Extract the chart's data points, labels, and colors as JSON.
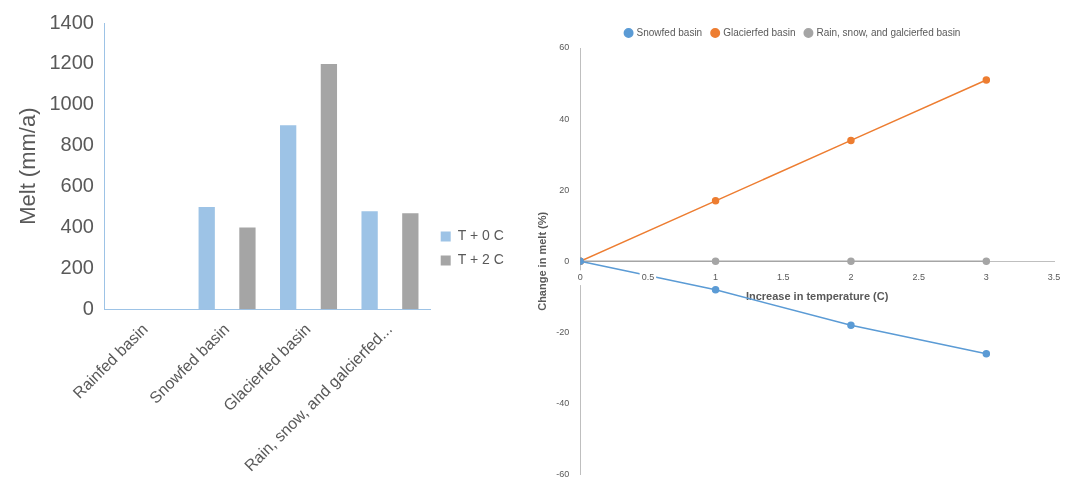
{
  "chart_data": [
    {
      "type": "bar",
      "ylabel": "Melt (mm/a)",
      "categories": [
        "Rainfed basin",
        "Snowfed basin",
        "Glacierfed basin",
        "Rain, snow, and galcierfed..."
      ],
      "ylim": [
        0,
        1400
      ],
      "yticks": [
        0,
        200,
        400,
        600,
        800,
        1000,
        1200,
        1400
      ],
      "grid": false,
      "legend": "right",
      "series": [
        {
          "name": "T + 0 C",
          "color": "#9dc3e6",
          "values": [
            0,
            500,
            900,
            480
          ]
        },
        {
          "name": "T + 2 C",
          "color": "#a5a5a5",
          "values": [
            0,
            400,
            1200,
            470
          ]
        }
      ]
    },
    {
      "type": "line",
      "xlabel": "Increase in temperature (C)",
      "ylabel": "Change in melt (%)",
      "xlim": [
        0,
        3.5
      ],
      "xticks": [
        0,
        0.5,
        1,
        1.5,
        2,
        2.5,
        3,
        3.5
      ],
      "ylim": [
        -60,
        60
      ],
      "yticks": [
        -60,
        -40,
        -20,
        0,
        20,
        40,
        60
      ],
      "grid": false,
      "legend": "top",
      "marker": "circle",
      "line_style": "solid",
      "series": [
        {
          "name": "Snowfed basin",
          "color": "#5b9bd5",
          "x": [
            0,
            1,
            2,
            3
          ],
          "values": [
            0,
            -8,
            -18,
            -26
          ]
        },
        {
          "name": "Glacierfed basin",
          "color": "#ed7d31",
          "x": [
            0,
            1,
            2,
            3
          ],
          "values": [
            0,
            17,
            34,
            51
          ]
        },
        {
          "name": "Rain, snow, and galcierfed basin",
          "color": "#a5a5a5",
          "x": [
            0,
            1,
            2,
            3
          ],
          "values": [
            0,
            0,
            0,
            0
          ]
        }
      ]
    }
  ]
}
